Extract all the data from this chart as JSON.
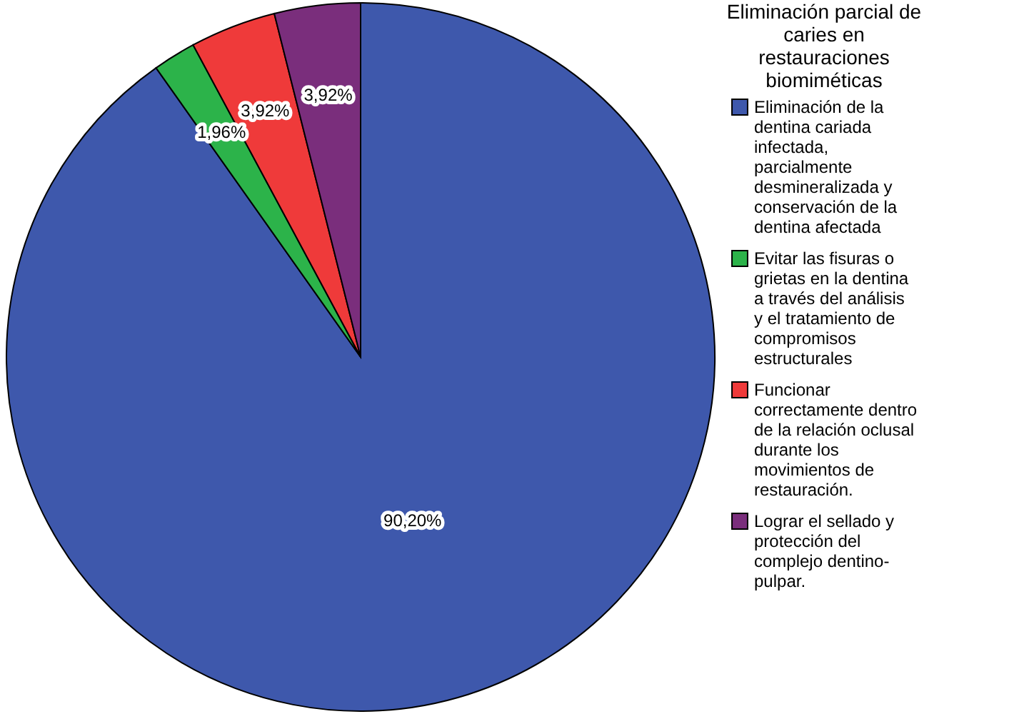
{
  "chart_data": {
    "type": "pie",
    "legend_title": "Eliminación parcial de caries en restauraciones biomiméticas",
    "categories": [
      "Eliminación de la dentina cariada infectada, parcialmente desmineralizada y conservación de la dentina afectada",
      "Evitar las fisuras o grietas en la dentina a través del análisis y el tratamiento de compromisos estructurales",
      "Funcionar correctamente dentro de la relación oclusal durante los movimientos de restauración.",
      "Lograr el sellado y protección del complejo dentino-pulpar."
    ],
    "values": [
      90.2,
      1.96,
      3.92,
      3.92
    ],
    "value_labels": [
      "90,20%",
      "1,96%",
      "3,92%",
      "3,92%"
    ],
    "colors": [
      "#3e58ac",
      "#2cb34a",
      "#ef3a3a",
      "#7a2e7c"
    ],
    "legend": "right"
  }
}
